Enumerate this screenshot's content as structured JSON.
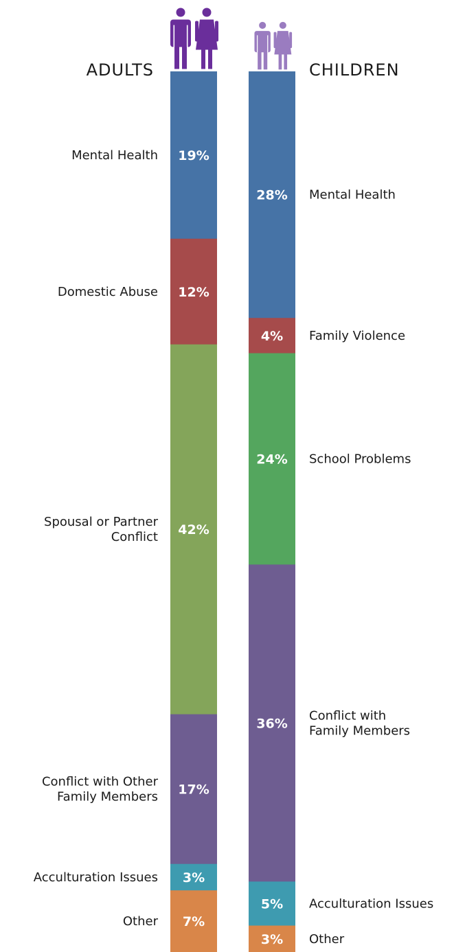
{
  "chart_data": {
    "type": "bar",
    "subtype": "stacked-100-percent",
    "orientation": "vertical",
    "series": [
      {
        "name": "ADULTS",
        "icon": "adult-couple-icon",
        "icon_color": "#6a2e9b",
        "segments": [
          {
            "label": "Mental Health",
            "value": 19,
            "display": "19%",
            "color": "#4673a6"
          },
          {
            "label": "Domestic Abuse",
            "value": 12,
            "display": "12%",
            "color": "#a64b4b"
          },
          {
            "label": "Spousal or Partner\nConflict",
            "value": 42,
            "display": "42%",
            "color": "#84a55a"
          },
          {
            "label": "Conflict with Other\nFamily Members",
            "value": 17,
            "display": "17%",
            "color": "#6e5d91"
          },
          {
            "label": "Acculturation Issues",
            "value": 3,
            "display": "3%",
            "color": "#3e9bb0"
          },
          {
            "label": "Other",
            "value": 7,
            "display": "7%",
            "color": "#d98649"
          }
        ]
      },
      {
        "name": "CHILDREN",
        "icon": "child-couple-icon",
        "icon_color": "#9a7cc0",
        "segments": [
          {
            "label": "Mental Health",
            "value": 28,
            "display": "28%",
            "color": "#4673a6"
          },
          {
            "label": "Family Violence",
            "value": 4,
            "display": "4%",
            "color": "#a64b4b"
          },
          {
            "label": "School Problems",
            "value": 24,
            "display": "24%",
            "color": "#54a65e"
          },
          {
            "label": "Conflict with\nFamily Members",
            "value": 36,
            "display": "36%",
            "color": "#6e5d91"
          },
          {
            "label": "Acculturation Issues",
            "value": 5,
            "display": "5%",
            "color": "#3e9bb0"
          },
          {
            "label": "Other",
            "value": 3,
            "display": "3%",
            "color": "#d98649"
          }
        ]
      }
    ],
    "legend": "none",
    "grid": false
  }
}
